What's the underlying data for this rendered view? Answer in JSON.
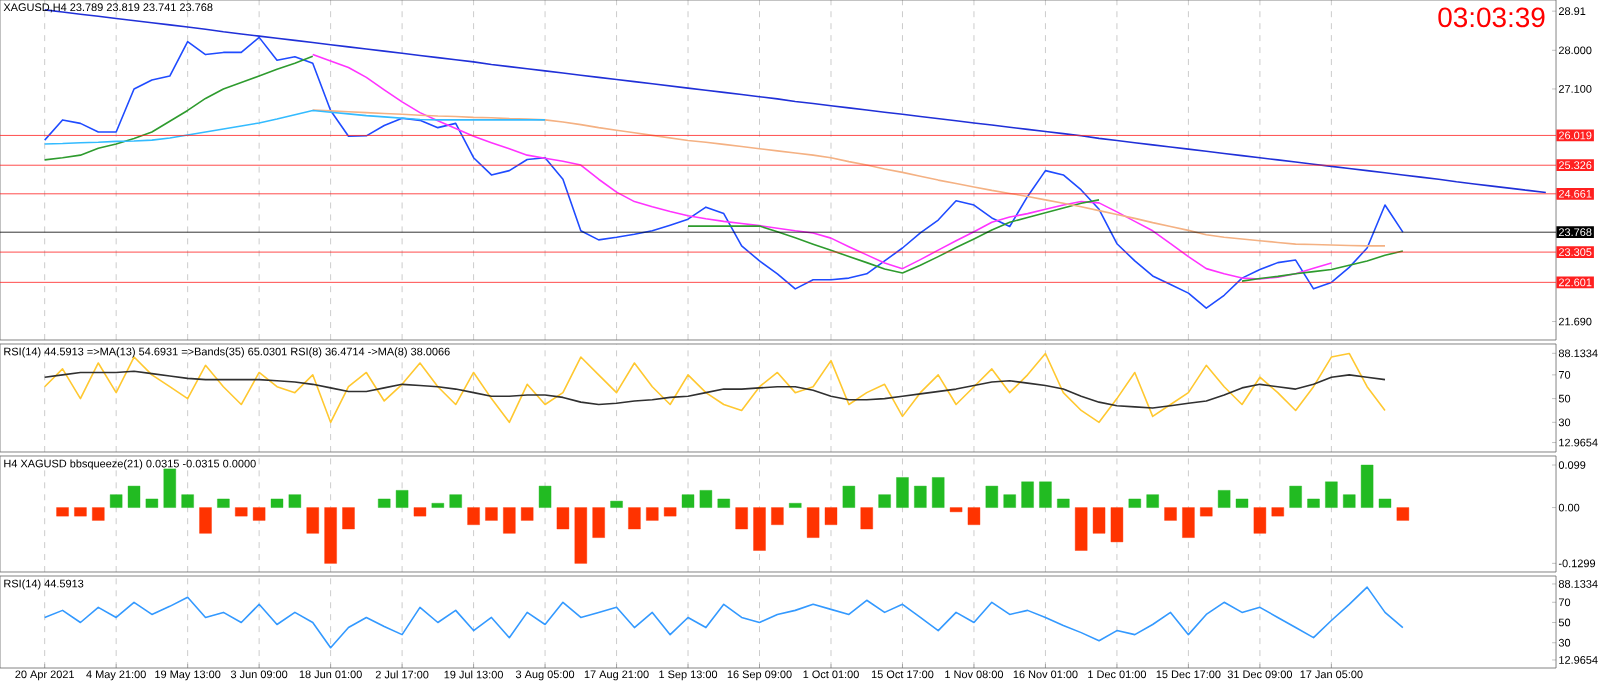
{
  "chart_data": [
    {
      "type": "line",
      "title": "XAGUSD,H4  23.789 23.819 23.741 23.768",
      "annotations": [
        "03:03:39"
      ],
      "grid": "x",
      "tick_labels": "y",
      "categories": [
        null,
        null,
        null,
        null,
        null,
        null,
        null,
        null,
        null,
        null,
        null,
        null,
        null,
        null,
        null,
        null,
        null,
        null,
        null,
        null,
        null,
        null,
        null,
        null,
        null,
        null,
        null,
        null,
        null,
        null,
        null,
        null,
        null,
        null,
        null,
        null,
        null,
        null,
        null,
        null,
        null,
        null,
        null,
        null,
        null,
        null,
        null,
        null,
        null,
        null,
        null,
        null,
        null,
        null,
        null,
        null,
        null,
        null,
        null,
        null,
        null,
        null,
        null,
        null,
        null,
        null,
        null,
        null,
        null,
        null,
        null,
        null,
        null,
        null,
        null,
        null,
        null,
        null,
        null,
        null,
        null,
        null,
        null,
        null,
        null
      ],
      "ylim": [
        21.26,
        29.17
      ],
      "yticks": [
        28.91,
        {
          "value": 28.0,
          "label": "28.000"
        },
        {
          "value": 27.1,
          "label": "27.100"
        },
        {
          "value": 21.69,
          "label": "21.690"
        }
      ],
      "ref_lines": [
        {
          "axis": "y",
          "value": 26.019,
          "label": "26.019",
          "color": "#ff2020"
        },
        {
          "axis": "y",
          "value": 25.326,
          "label": "25.326",
          "color": "#ff2020"
        },
        {
          "axis": "y",
          "value": 24.661,
          "label": "24.661",
          "color": "#ff2020"
        },
        {
          "axis": "y",
          "value": 23.768,
          "label": "23.768",
          "color": "#000000"
        },
        {
          "axis": "y",
          "value": 23.305,
          "label": "23.305",
          "color": "#ff2020"
        },
        {
          "axis": "y",
          "value": 22.601,
          "label": "22.601",
          "color": "#ff2020"
        }
      ],
      "series": [
        {
          "color": "#1f4bff",
          "values": [
            25.91,
            26.38,
            26.3,
            26.1,
            26.1,
            27.1,
            27.31,
            27.4,
            28.2,
            27.9,
            27.95,
            27.95,
            28.3,
            27.77,
            27.85,
            27.7,
            26.6,
            26.0,
            26.01,
            26.25,
            26.42,
            26.37,
            26.2,
            26.3,
            25.5,
            25.1,
            25.2,
            25.46,
            25.5,
            25.0,
            23.8,
            23.59,
            23.65,
            23.72,
            23.8,
            23.93,
            24.07,
            24.35,
            24.2,
            23.45,
            23.1,
            22.8,
            22.45,
            22.66,
            22.66,
            22.7,
            22.8,
            23.1,
            23.4,
            23.75,
            24.05,
            24.5,
            24.4,
            24.1,
            23.9,
            24.6,
            25.2,
            25.1,
            24.75,
            24.3,
            23.5,
            23.1,
            22.75,
            22.55,
            22.35,
            22.0,
            22.3,
            22.7,
            22.9,
            23.06,
            23.12,
            22.45,
            22.6,
            22.95,
            23.4,
            24.4,
            23.77,
            null,
            null,
            null,
            null,
            null,
            null,
            null,
            null
          ]
        },
        {
          "color": "#2030d8",
          "values": [
            28.94,
            28.89,
            28.84,
            28.79,
            28.74,
            28.69,
            28.64,
            28.59,
            28.54,
            28.49,
            28.43,
            28.38,
            28.33,
            28.28,
            28.23,
            28.18,
            28.13,
            28.08,
            28.03,
            27.98,
            27.93,
            27.88,
            27.83,
            27.78,
            27.73,
            27.67,
            27.62,
            27.57,
            27.52,
            27.47,
            27.42,
            27.37,
            27.32,
            27.27,
            27.22,
            27.17,
            27.12,
            27.07,
            27.02,
            26.97,
            26.92,
            26.87,
            26.81,
            26.76,
            26.71,
            26.66,
            26.61,
            26.56,
            26.51,
            26.46,
            26.41,
            26.36,
            26.31,
            26.26,
            26.21,
            26.16,
            26.11,
            26.06,
            26.01,
            25.95,
            25.9,
            25.85,
            25.8,
            25.75,
            25.7,
            25.65,
            25.6,
            25.55,
            25.5,
            25.45,
            25.4,
            25.35,
            25.3,
            25.25,
            25.2,
            25.15,
            25.1,
            25.05,
            25.0,
            24.94,
            24.89,
            24.84,
            24.79,
            24.74,
            24.69
          ]
        },
        {
          "color": "#ff33ff",
          "values": [
            null,
            null,
            null,
            null,
            null,
            null,
            null,
            null,
            null,
            null,
            null,
            null,
            null,
            null,
            null,
            27.9,
            27.75,
            27.6,
            27.37,
            27.08,
            26.8,
            26.55,
            26.36,
            26.18,
            26.0,
            25.85,
            25.71,
            25.56,
            25.49,
            25.42,
            25.33,
            25.0,
            24.7,
            24.48,
            24.36,
            24.25,
            24.15,
            24.08,
            24.02,
            23.97,
            23.92,
            23.86,
            23.8,
            23.75,
            23.63,
            23.43,
            23.24,
            23.05,
            22.92,
            23.13,
            23.35,
            23.57,
            23.78,
            24.0,
            24.12,
            24.2,
            24.3,
            24.4,
            24.48,
            24.45,
            24.24,
            24.02,
            23.8,
            23.5,
            23.2,
            22.92,
            22.8,
            22.7,
            22.68,
            22.72,
            22.8,
            22.93,
            23.05,
            null,
            null,
            null,
            null,
            null,
            null,
            null,
            null,
            null,
            null,
            null,
            null
          ]
        },
        {
          "color": "#2e9b2e",
          "values": [
            25.45,
            25.5,
            25.56,
            25.72,
            25.82,
            25.95,
            26.1,
            26.35,
            26.6,
            26.88,
            27.1,
            27.25,
            27.4,
            27.56,
            27.7,
            27.86,
            null,
            null,
            null,
            null,
            null,
            null,
            null,
            null,
            null,
            null,
            null,
            null,
            null,
            null,
            null,
            null,
            null,
            null,
            null,
            null,
            23.91,
            23.91,
            23.91,
            23.91,
            23.91,
            23.78,
            23.64,
            23.49,
            23.35,
            23.2,
            23.06,
            22.91,
            22.82,
            23.0,
            23.2,
            23.41,
            23.61,
            23.82,
            24.0,
            24.11,
            24.22,
            24.33,
            24.44,
            24.52,
            null,
            null,
            null,
            null,
            null,
            null,
            null,
            22.63,
            22.69,
            22.74,
            22.8,
            22.85,
            22.9,
            23.0,
            23.1,
            23.23,
            23.33,
            null,
            null,
            null,
            null,
            null,
            null,
            null,
            null
          ]
        },
        {
          "color": "#f4b183",
          "values": [
            null,
            null,
            null,
            null,
            null,
            null,
            null,
            null,
            null,
            null,
            null,
            null,
            null,
            null,
            null,
            26.61,
            26.59,
            26.57,
            26.55,
            26.53,
            26.51,
            26.49,
            26.47,
            26.46,
            26.44,
            26.43,
            26.41,
            26.4,
            26.38,
            26.33,
            26.27,
            26.2,
            26.14,
            26.08,
            26.02,
            25.96,
            25.9,
            25.86,
            25.81,
            25.76,
            25.71,
            25.66,
            25.61,
            25.56,
            25.5,
            25.41,
            25.33,
            25.24,
            25.16,
            25.07,
            24.98,
            24.9,
            24.82,
            24.74,
            24.67,
            24.6,
            24.52,
            24.44,
            24.36,
            24.27,
            24.18,
            24.09,
            23.99,
            23.9,
            23.81,
            23.71,
            23.65,
            23.61,
            23.57,
            23.53,
            23.49,
            23.48,
            23.47,
            23.46,
            23.45,
            23.45,
            null,
            null,
            null,
            null,
            null,
            null,
            null,
            null,
            null
          ]
        },
        {
          "color": "#33bbff",
          "values": [
            25.82,
            25.83,
            25.85,
            25.86,
            25.88,
            25.89,
            25.91,
            25.96,
            26.03,
            26.1,
            26.17,
            26.24,
            26.31,
            26.4,
            26.5,
            26.6,
            26.56,
            26.52,
            26.48,
            26.45,
            26.42,
            26.39,
            26.38,
            26.38,
            26.38,
            26.38,
            26.38,
            26.38,
            26.38,
            null,
            null,
            null,
            null,
            null,
            null,
            null,
            null,
            null,
            null,
            null,
            null,
            null,
            null,
            null,
            null,
            null,
            null,
            null,
            null,
            null,
            null,
            null,
            null,
            null,
            null,
            null,
            null,
            null,
            null,
            null,
            null,
            null,
            null,
            null,
            null,
            null,
            null,
            null,
            null,
            null,
            null,
            null,
            null,
            null,
            null,
            null,
            null,
            null,
            null,
            null,
            null,
            null,
            null,
            null,
            null
          ]
        }
      ]
    },
    {
      "type": "line",
      "title": "RSI(14) 44.5913  =>MA(13) 54.6931  =>Bands(35) 65.0301  RSI(8) 36.4714  ->MA(8) 38.0066",
      "grid": "x",
      "tick_labels": "y",
      "categories": [
        null,
        null,
        null,
        null,
        null,
        null,
        null,
        null,
        null,
        null,
        null,
        null,
        null,
        null,
        null,
        null,
        null,
        null,
        null,
        null,
        null,
        null,
        null,
        null,
        null,
        null,
        null,
        null,
        null,
        null,
        null,
        null,
        null,
        null,
        null,
        null,
        null,
        null,
        null,
        null,
        null,
        null,
        null,
        null,
        null,
        null,
        null,
        null,
        null,
        null,
        null,
        null,
        null,
        null,
        null,
        null,
        null,
        null,
        null,
        null,
        null,
        null,
        null,
        null,
        null,
        null,
        null,
        null,
        null,
        null,
        null,
        null,
        null,
        null,
        null,
        null,
        null,
        null,
        null,
        null,
        null,
        null,
        null,
        null,
        null
      ],
      "ylim": [
        5,
        96
      ],
      "yticks": [
        88.1334,
        70,
        50,
        30,
        12.9654
      ],
      "series": [
        {
          "color": "#ffc830",
          "values": [
            60,
            75,
            50,
            80,
            55,
            85,
            70,
            60,
            50,
            78,
            60,
            45,
            72,
            60,
            55,
            70,
            30,
            60,
            72,
            48,
            62,
            80,
            60,
            45,
            72,
            50,
            30,
            62,
            45,
            55,
            85,
            70,
            55,
            80,
            60,
            45,
            70,
            55,
            45,
            40,
            60,
            72,
            55,
            60,
            82,
            45,
            55,
            62,
            35,
            55,
            70,
            45,
            60,
            75,
            55,
            70,
            88,
            55,
            40,
            30,
            50,
            72,
            35,
            45,
            55,
            78,
            60,
            45,
            68,
            55,
            40,
            60,
            85,
            88,
            60,
            40,
            null,
            null,
            null,
            null,
            null,
            null,
            null,
            null,
            null
          ]
        },
        {
          "color": "#303030",
          "values": [
            68,
            70,
            72,
            72,
            72,
            73,
            71,
            69,
            67,
            66,
            66,
            66,
            66,
            65,
            64,
            62,
            59,
            56,
            56,
            59,
            62,
            61,
            60,
            58,
            55,
            52,
            52,
            53,
            53,
            51,
            47,
            45,
            46,
            48,
            49,
            51,
            52,
            55,
            58,
            58,
            59,
            60,
            60,
            57,
            52,
            49,
            49,
            50,
            52,
            54,
            56,
            58,
            61,
            64,
            65,
            63,
            61,
            58,
            52,
            47,
            44,
            43,
            42,
            44,
            46,
            48,
            53,
            59,
            62,
            60,
            58,
            62,
            68,
            70,
            68,
            66,
            null,
            null,
            null,
            null,
            null,
            null,
            null,
            null,
            null
          ]
        }
      ]
    },
    {
      "type": "bar",
      "title": "H4 XAGUSD bbsqueeze(21) 0.0315 -0.0315 0.0000",
      "grid": "x",
      "tick_labels": "y",
      "categories": [
        null,
        null,
        null,
        null,
        null,
        null,
        null,
        null,
        null,
        null,
        null,
        null,
        null,
        null,
        null,
        null,
        null,
        null,
        null,
        null,
        null,
        null,
        null,
        null,
        null,
        null,
        null,
        null,
        null,
        null,
        null,
        null,
        null,
        null,
        null,
        null,
        null,
        null,
        null,
        null,
        null,
        null,
        null,
        null,
        null,
        null,
        null,
        null,
        null,
        null,
        null,
        null,
        null,
        null,
        null,
        null,
        null,
        null,
        null,
        null,
        null,
        null,
        null,
        null,
        null,
        null,
        null,
        null,
        null,
        null,
        null,
        null,
        null,
        null,
        null,
        null,
        null,
        null,
        null,
        null,
        null,
        null,
        null,
        null,
        null
      ],
      "ylim": [
        -0.15,
        0.12
      ],
      "yticks": [
        0.099,
        {
          "value": 0,
          "label": "0.00"
        },
        -0.1299
      ],
      "series": [
        {
          "color": "#22bb22",
          "values": [
            null,
            null,
            null,
            null,
            0.03,
            0.05,
            0.02,
            0.09,
            0.03,
            null,
            0.02,
            null,
            null,
            0.02,
            0.03,
            null,
            null,
            null,
            null,
            0.02,
            0.04,
            null,
            0.01,
            0.03,
            null,
            null,
            null,
            null,
            0.05,
            null,
            null,
            null,
            0.015,
            null,
            null,
            null,
            0.03,
            0.04,
            0.02,
            null,
            null,
            null,
            0.01,
            null,
            null,
            0.05,
            null,
            0.03,
            0.07,
            0.05,
            0.07,
            null,
            null,
            0.05,
            0.03,
            0.06,
            0.06,
            0.02,
            null,
            null,
            null,
            0.02,
            0.03,
            null,
            null,
            null,
            0.04,
            0.02,
            null,
            null,
            0.05,
            0.02,
            0.06,
            0.03,
            0.099,
            0.02,
            null,
            null,
            null,
            null,
            null,
            null,
            null,
            null,
            null
          ]
        },
        {
          "color": "#ff3300",
          "values": [
            null,
            -0.02,
            -0.02,
            -0.03,
            null,
            null,
            null,
            null,
            null,
            -0.06,
            null,
            -0.02,
            -0.03,
            null,
            null,
            -0.06,
            -0.13,
            -0.05,
            null,
            null,
            null,
            -0.02,
            null,
            null,
            -0.04,
            -0.03,
            -0.06,
            -0.03,
            null,
            -0.05,
            -0.13,
            -0.07,
            null,
            -0.05,
            -0.03,
            -0.02,
            null,
            null,
            null,
            -0.05,
            -0.1,
            -0.04,
            null,
            -0.07,
            -0.04,
            null,
            -0.05,
            null,
            null,
            null,
            null,
            -0.01,
            -0.04,
            null,
            null,
            null,
            null,
            null,
            -0.1,
            -0.06,
            -0.08,
            null,
            null,
            -0.03,
            -0.07,
            -0.02,
            null,
            null,
            -0.06,
            -0.02,
            null,
            null,
            null,
            null,
            null,
            null,
            -0.03,
            null,
            null,
            null,
            null,
            null,
            null,
            null,
            null
          ]
        }
      ]
    },
    {
      "type": "line",
      "title": "RSI(14) 44.5913",
      "grid": "x",
      "categories": [
        "20 Apr 2021",
        null,
        null,
        null,
        "4 May 21:00",
        null,
        null,
        null,
        "19 May 13:00",
        null,
        null,
        null,
        "3 Jun 09:00",
        null,
        null,
        null,
        "18 Jun 01:00",
        null,
        null,
        null,
        "2 Jul 17:00",
        null,
        null,
        null,
        "19 Jul 13:00",
        null,
        null,
        null,
        "3 Aug 05:00",
        null,
        null,
        null,
        "17 Aug 21:00",
        null,
        null,
        null,
        "1 Sep 13:00",
        null,
        null,
        null,
        "16 Sep 09:00",
        null,
        null,
        null,
        "1 Oct 01:00",
        null,
        null,
        null,
        "15 Oct 17:00",
        null,
        null,
        null,
        "1 Nov 08:00",
        null,
        null,
        null,
        "16 Nov 01:00",
        null,
        null,
        null,
        "1 Dec 01:00",
        null,
        null,
        null,
        "15 Dec 17:00",
        null,
        null,
        null,
        "31 Dec 09:00",
        null,
        null,
        null,
        "17 Jan 05:00",
        null,
        null,
        null,
        null,
        null,
        null,
        null,
        null,
        null,
        null,
        null,
        null
      ],
      "ylim": [
        5,
        96
      ],
      "yticks": [
        88.1334,
        70,
        50,
        30,
        12.9654
      ],
      "series": [
        {
          "color": "#3399ff",
          "values": [
            55,
            62,
            50,
            65,
            55,
            70,
            58,
            66,
            75,
            55,
            60,
            50,
            68,
            48,
            60,
            50,
            25,
            45,
            55,
            46,
            38,
            65,
            50,
            62,
            42,
            55,
            35,
            60,
            48,
            70,
            55,
            60,
            65,
            45,
            60,
            38,
            55,
            45,
            68,
            55,
            50,
            58,
            62,
            68,
            63,
            58,
            72,
            60,
            68,
            55,
            42,
            60,
            50,
            70,
            58,
            62,
            55,
            47,
            40,
            32,
            42,
            38,
            48,
            60,
            38,
            58,
            70,
            60,
            65,
            55,
            45,
            35,
            52,
            68,
            85,
            60,
            45,
            null,
            null,
            null,
            null,
            null,
            null,
            null,
            null
          ]
        }
      ]
    }
  ]
}
